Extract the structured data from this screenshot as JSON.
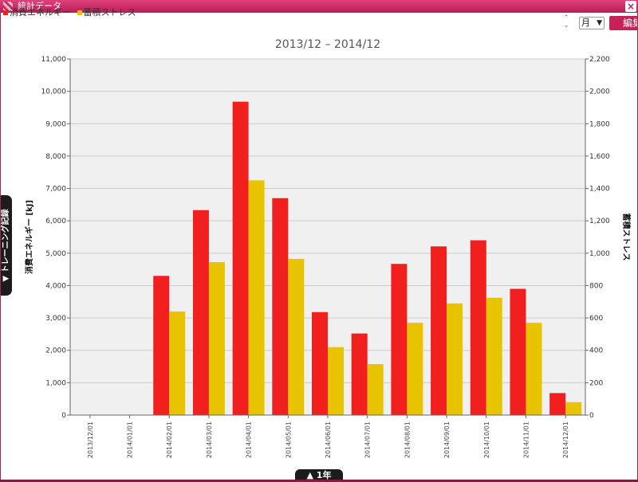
{
  "window": {
    "title": "統計データ",
    "close_icon": "×"
  },
  "toolbar": {
    "spinner_up": "⌃",
    "spinner_down": "⌄",
    "period_value": "月",
    "edit_label": "編集"
  },
  "side_tab": {
    "label": "▼ トレーニング記録"
  },
  "bottom_tab": {
    "label": "▲ 1年"
  },
  "colors": {
    "energy": "#f21f1f",
    "stress": "#e8c400",
    "plot_bg": "#f0f0f0",
    "grid": "#cccccc",
    "accent": "#c6225a"
  },
  "chart_data": {
    "type": "bar",
    "title": "2013/12 – 2014/12",
    "categories": [
      "2013/12/01",
      "2014/01/01",
      "2014/02/01",
      "2014/03/01",
      "2014/04/01",
      "2014/05/01",
      "2014/06/01",
      "2014/07/01",
      "2014/08/01",
      "2014/09/01",
      "2014/10/01",
      "2014/11/01",
      "2014/12/01"
    ],
    "series": [
      {
        "name": "消費エネルギー",
        "axis": "left",
        "color": "#f21f1f",
        "values": [
          0,
          0,
          4300,
          6330,
          9680,
          6700,
          3180,
          2520,
          4670,
          5210,
          5400,
          3900,
          680
        ]
      },
      {
        "name": "蓄積ストレス",
        "axis": "right",
        "color": "#e8c400",
        "values": [
          0,
          0,
          640,
          945,
          1450,
          965,
          420,
          315,
          570,
          690,
          725,
          570,
          80
        ]
      }
    ],
    "y_left": {
      "label": "消費エネルギー [kJ]",
      "min": 0,
      "max": 11000,
      "ticks": [
        "0",
        "1,000",
        "2,000",
        "3,000",
        "4,000",
        "5,000",
        "6,000",
        "7,000",
        "8,000",
        "9,000",
        "10,000",
        "11,000"
      ]
    },
    "y_right": {
      "label": "蓄積ストレス",
      "min": 0,
      "max": 2200,
      "ticks": [
        "0",
        "200",
        "400",
        "600",
        "800",
        "1,000",
        "1,200",
        "1,400",
        "1,600",
        "1,800",
        "2,000",
        "2,200"
      ]
    },
    "grid": true,
    "legend_position": "top-left"
  }
}
